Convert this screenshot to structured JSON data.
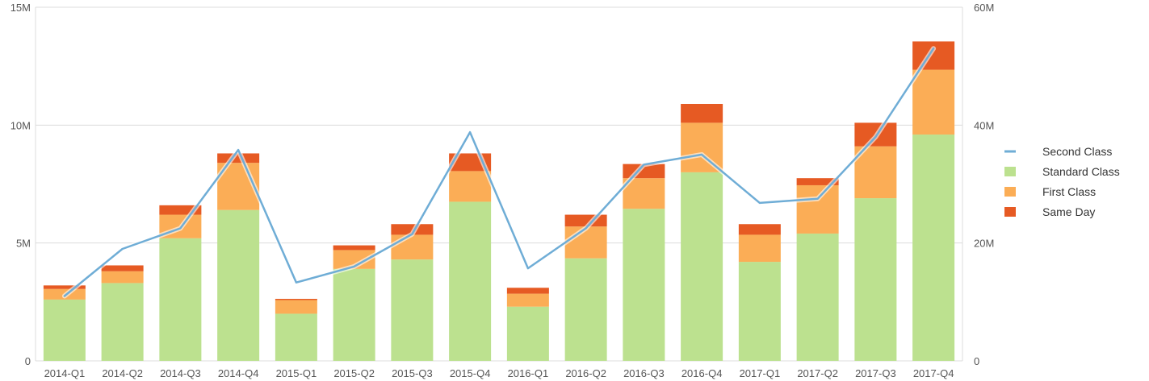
{
  "chart_data": {
    "type": "bar",
    "stacked": true,
    "categories": [
      "2014-Q1",
      "2014-Q2",
      "2014-Q3",
      "2014-Q4",
      "2015-Q1",
      "2015-Q2",
      "2015-Q3",
      "2015-Q4",
      "2016-Q1",
      "2016-Q2",
      "2016-Q3",
      "2016-Q4",
      "2017-Q1",
      "2017-Q2",
      "2017-Q3",
      "2017-Q4"
    ],
    "series": [
      {
        "name": "Standard Class",
        "color": "#bce18f",
        "axis": "left",
        "values": [
          2.6,
          3.3,
          5.2,
          6.4,
          2.0,
          3.9,
          4.3,
          6.75,
          2.3,
          4.35,
          6.45,
          8.0,
          4.2,
          5.4,
          6.9,
          9.6
        ]
      },
      {
        "name": "First Class",
        "color": "#fbad56",
        "axis": "left",
        "values": [
          0.45,
          0.5,
          1.0,
          2.0,
          0.58,
          0.8,
          1.05,
          1.3,
          0.55,
          1.35,
          1.3,
          2.1,
          1.15,
          2.05,
          2.2,
          2.75
        ]
      },
      {
        "name": "Same Day",
        "color": "#e65a23",
        "axis": "left",
        "values": [
          0.15,
          0.25,
          0.4,
          0.4,
          0.05,
          0.2,
          0.45,
          0.75,
          0.25,
          0.5,
          0.6,
          0.8,
          0.45,
          0.3,
          1.0,
          1.2
        ]
      },
      {
        "name": "Second Class",
        "color": "#6fadd6",
        "axis": "right",
        "type": "line",
        "values": [
          11,
          19,
          22.5,
          35.8,
          13.3,
          16,
          21.5,
          38.8,
          15.7,
          22.5,
          33.3,
          35,
          26.8,
          27.5,
          38,
          53
        ]
      }
    ],
    "left_axis": {
      "min": 0,
      "max": 15,
      "ticks": [
        0,
        5,
        10,
        15
      ],
      "tick_labels": [
        "0",
        "5M",
        "10M",
        "15M"
      ]
    },
    "right_axis": {
      "min": 0,
      "max": 60,
      "ticks": [
        0,
        20,
        40,
        60
      ],
      "tick_labels": [
        "0",
        "20M",
        "40M",
        "60M"
      ]
    },
    "legend": {
      "position": "right",
      "items": [
        {
          "label": "Second Class",
          "color": "#6fadd6",
          "kind": "line"
        },
        {
          "label": "Standard Class",
          "color": "#bce18f",
          "kind": "box"
        },
        {
          "label": "First Class",
          "color": "#fbad56",
          "kind": "box"
        },
        {
          "label": "Same Day",
          "color": "#e65a23",
          "kind": "box"
        }
      ]
    },
    "grid": true
  }
}
